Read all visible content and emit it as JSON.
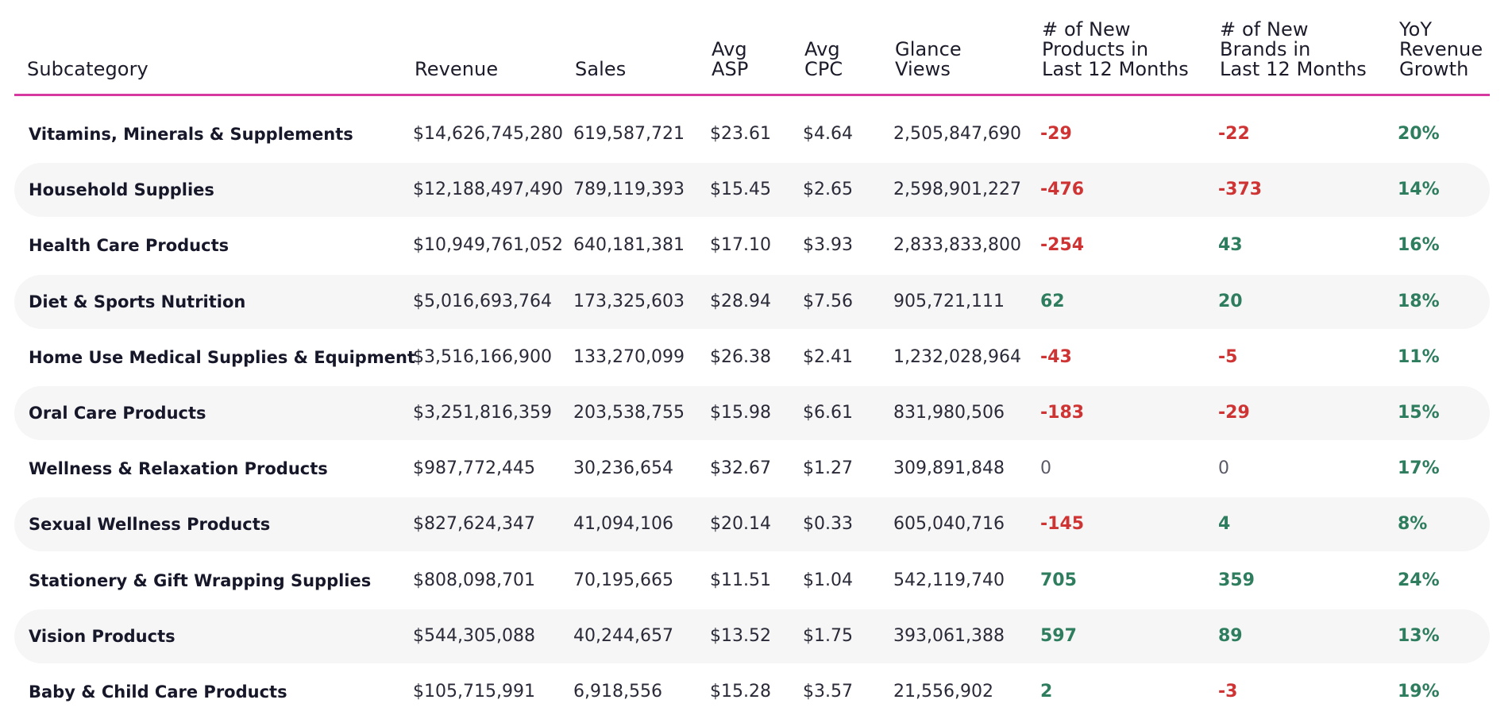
{
  "table": {
    "headers": {
      "subcategory": "Subcategory",
      "revenue": "Revenue",
      "sales": "Sales",
      "avg_asp": "Avg\nASP",
      "avg_cpc": "Avg\nCPC",
      "glance_views": "Glance\nViews",
      "new_products": "# of New\nProducts in\nLast 12 Months",
      "new_brands": "# of New\nBrands in\nLast 12 Months",
      "yoy_growth": "YoY\nRevenue\nGrowth"
    },
    "accent_color": "#d63aa1",
    "negative_color": "#cf3434",
    "positive_color": "#2f7d5f",
    "rows": [
      {
        "subcategory": "Vitamins, Minerals & Supplements",
        "revenue": "$14,626,745,280",
        "sales": "619,587,721",
        "avg_asp": "$23.61",
        "avg_cpc": "$4.64",
        "glance_views": "2,505,847,690",
        "new_products": "-29",
        "new_brands": "-22",
        "yoy_growth": "20%"
      },
      {
        "subcategory": "Household Supplies",
        "revenue": "$12,188,497,490",
        "sales": "789,119,393",
        "avg_asp": "$15.45",
        "avg_cpc": "$2.65",
        "glance_views": "2,598,901,227",
        "new_products": "-476",
        "new_brands": "-373",
        "yoy_growth": "14%"
      },
      {
        "subcategory": "Health Care Products",
        "revenue": "$10,949,761,052",
        "sales": "640,181,381",
        "avg_asp": "$17.10",
        "avg_cpc": "$3.93",
        "glance_views": "2,833,833,800",
        "new_products": "-254",
        "new_brands": "43",
        "yoy_growth": "16%"
      },
      {
        "subcategory": "Diet & Sports Nutrition",
        "revenue": "$5,016,693,764",
        "sales": "173,325,603",
        "avg_asp": "$28.94",
        "avg_cpc": "$7.56",
        "glance_views": "905,721,111",
        "new_products": "62",
        "new_brands": "20",
        "yoy_growth": "18%"
      },
      {
        "subcategory": "Home Use Medical Supplies & Equipment",
        "revenue": "$3,516,166,900",
        "sales": "133,270,099",
        "avg_asp": "$26.38",
        "avg_cpc": "$2.41",
        "glance_views": "1,232,028,964",
        "new_products": "-43",
        "new_brands": "-5",
        "yoy_growth": "11%"
      },
      {
        "subcategory": "Oral Care Products",
        "revenue": "$3,251,816,359",
        "sales": "203,538,755",
        "avg_asp": "$15.98",
        "avg_cpc": "$6.61",
        "glance_views": "831,980,506",
        "new_products": "-183",
        "new_brands": "-29",
        "yoy_growth": "15%"
      },
      {
        "subcategory": "Wellness & Relaxation Products",
        "revenue": "$987,772,445",
        "sales": "30,236,654",
        "avg_asp": "$32.67",
        "avg_cpc": "$1.27",
        "glance_views": "309,891,848",
        "new_products": "0",
        "new_brands": "0",
        "yoy_growth": "17%"
      },
      {
        "subcategory": "Sexual Wellness Products",
        "revenue": "$827,624,347",
        "sales": "41,094,106",
        "avg_asp": "$20.14",
        "avg_cpc": "$0.33",
        "glance_views": "605,040,716",
        "new_products": "-145",
        "new_brands": "4",
        "yoy_growth": "8%"
      },
      {
        "subcategory": "Stationery & Gift Wrapping Supplies",
        "revenue": "$808,098,701",
        "sales": "70,195,665",
        "avg_asp": "$11.51",
        "avg_cpc": "$1.04",
        "glance_views": "542,119,740",
        "new_products": "705",
        "new_brands": "359",
        "yoy_growth": "24%"
      },
      {
        "subcategory": "Vision Products",
        "revenue": "$544,305,088",
        "sales": "40,244,657",
        "avg_asp": "$13.52",
        "avg_cpc": "$1.75",
        "glance_views": "393,061,388",
        "new_products": "597",
        "new_brands": "89",
        "yoy_growth": "13%"
      },
      {
        "subcategory": "Baby & Child Care Products",
        "revenue": "$105,715,991",
        "sales": "6,918,556",
        "avg_asp": "$15.28",
        "avg_cpc": "$3.57",
        "glance_views": "21,556,902",
        "new_products": "2",
        "new_brands": "-3",
        "yoy_growth": "19%"
      }
    ]
  }
}
